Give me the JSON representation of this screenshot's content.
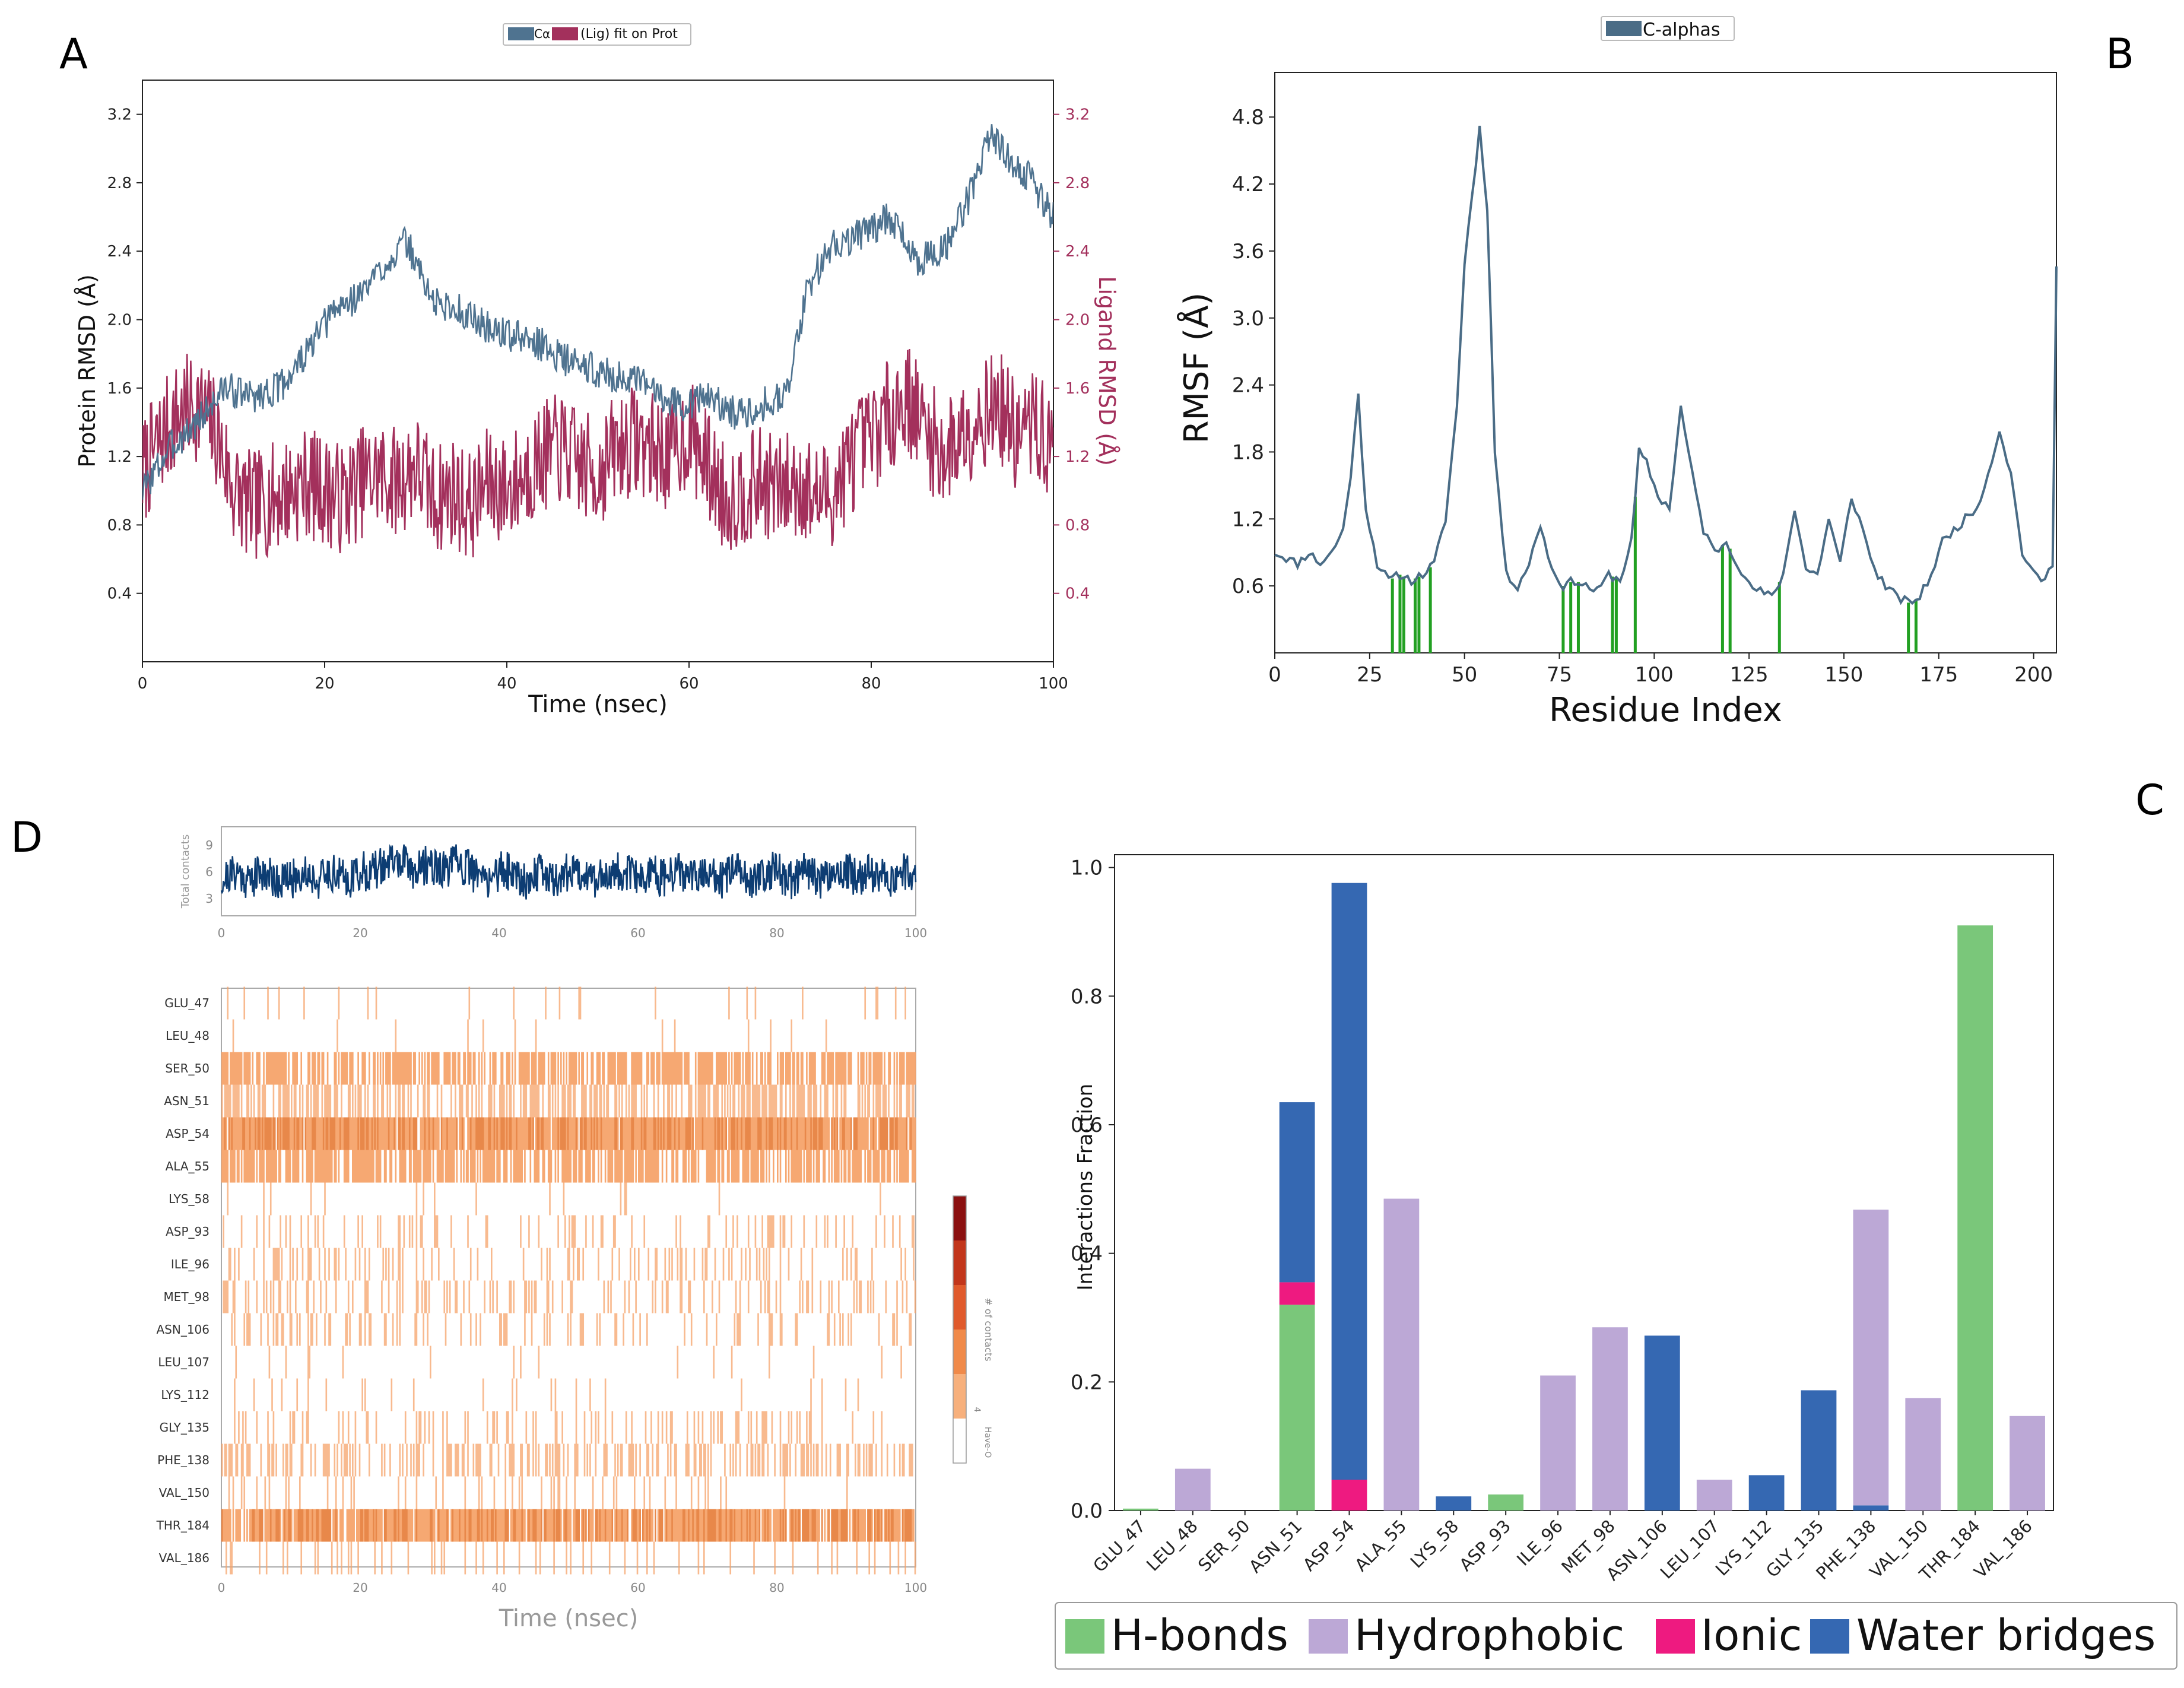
{
  "panels": {
    "a": "A",
    "b": "B",
    "c": "C",
    "d": "D"
  },
  "colors": {
    "protein": "#4f7390",
    "ligand": "#a3305c",
    "rmsf": "#4a6c86",
    "contact_marker": "#22a022",
    "contacts_line": "#0d3d73",
    "hbonds": "#7ac77a",
    "hydrophobic": "#bca8d6",
    "ionic": "#ee1a80",
    "water": "#3568b2",
    "heat": "#f5a36a",
    "heat_dark": "#e8884a"
  },
  "chart_data": [
    {
      "id": "A",
      "type": "line",
      "legend": {
        "labels": [
          "Cα",
          "(Lig) fit on Prot"
        ],
        "position": "top-center"
      },
      "xlabel": "Time (nsec)",
      "ylabel": "Protein RMSD (Å)",
      "y2label": "Ligand RMSD (Å)",
      "xlim": [
        0,
        100
      ],
      "ylim": [
        0,
        3.4
      ],
      "xticks": [
        "0",
        "20",
        "40",
        "60",
        "80",
        "100"
      ],
      "yticks": [
        "0.4",
        "0.8",
        "1.2",
        "1.6",
        "2.0",
        "2.4",
        "2.8",
        "3.2"
      ],
      "y2ticks": [
        "0.4",
        "0.8",
        "1.2",
        "1.6",
        "2.0",
        "2.4",
        "2.8",
        "3.2"
      ],
      "series": [
        {
          "key": "protein",
          "x": [
            0,
            3,
            6,
            9,
            12,
            15,
            18,
            21,
            24,
            27,
            29,
            32,
            35,
            38,
            41,
            44,
            47,
            50,
            53,
            56,
            59,
            62,
            65,
            68,
            71,
            73,
            76,
            79,
            82,
            85,
            88,
            91,
            93,
            95,
            97,
            100
          ],
          "values": [
            1.0,
            1.25,
            1.4,
            1.6,
            1.55,
            1.6,
            1.8,
            2.05,
            2.15,
            2.35,
            2.45,
            2.1,
            2.05,
            1.95,
            1.9,
            1.85,
            1.75,
            1.7,
            1.65,
            1.6,
            1.5,
            1.55,
            1.45,
            1.5,
            1.6,
            2.2,
            2.45,
            2.5,
            2.6,
            2.35,
            2.4,
            2.75,
            3.1,
            2.95,
            2.85,
            2.6
          ]
        },
        {
          "key": "ligand",
          "x": [
            0,
            2,
            4,
            6,
            8,
            10,
            12,
            14,
            16,
            18,
            20,
            22,
            24,
            26,
            28,
            30,
            32,
            34,
            36,
            38,
            40,
            42,
            44,
            46,
            48,
            50,
            52,
            54,
            56,
            58,
            60,
            62,
            64,
            66,
            68,
            70,
            72,
            74,
            76,
            78,
            80,
            82,
            84,
            86,
            88,
            90,
            92,
            94,
            96,
            98,
            100
          ],
          "values": [
            1.1,
            1.3,
            1.45,
            1.5,
            1.35,
            1.0,
            0.9,
            0.95,
            1.0,
            1.05,
            1.0,
            0.95,
            1.05,
            1.1,
            1.05,
            1.15,
            0.95,
            1.0,
            0.9,
            1.05,
            1.0,
            1.1,
            1.2,
            1.25,
            1.15,
            1.1,
            1.25,
            1.3,
            1.25,
            1.2,
            1.35,
            1.15,
            0.95,
            1.0,
            1.05,
            1.0,
            1.05,
            0.95,
            1.0,
            1.2,
            1.3,
            1.45,
            1.55,
            1.35,
            1.2,
            1.35,
            1.45,
            1.5,
            1.3,
            1.4,
            1.2
          ]
        }
      ]
    },
    {
      "id": "B",
      "type": "line",
      "legend": {
        "labels": [
          "C-alphas"
        ],
        "position": "top-center"
      },
      "xlabel": "Residue Index",
      "ylabel": "RMSF (Å)",
      "xlim": [
        0,
        206
      ],
      "ylim": [
        0,
        5.2
      ],
      "xticks": [
        "0",
        "25",
        "50",
        "75",
        "100",
        "125",
        "150",
        "175",
        "200"
      ],
      "yticks": [
        "0.6",
        "1.2",
        "1.8",
        "2.4",
        "3.0",
        "3.6",
        "4.2",
        "4.8"
      ],
      "series": [
        {
          "x": [
            0,
            3,
            6,
            9,
            12,
            15,
            18,
            20,
            22,
            24,
            27,
            30,
            33,
            36,
            39,
            42,
            45,
            48,
            50,
            52,
            54,
            56,
            58,
            61,
            64,
            67,
            70,
            73,
            76,
            79,
            82,
            85,
            88,
            91,
            94,
            96,
            98,
            101,
            104,
            107,
            110,
            113,
            116,
            119,
            122,
            125,
            128,
            131,
            134,
            137,
            140,
            143,
            146,
            149,
            152,
            155,
            158,
            161,
            164,
            167,
            170,
            173,
            176,
            179,
            182,
            185,
            188,
            191,
            194,
            197,
            200,
            203,
            205,
            206
          ],
          "values": [
            0.9,
            0.85,
            0.8,
            0.9,
            0.8,
            0.9,
            1.1,
            1.6,
            2.3,
            1.3,
            0.8,
            0.65,
            0.7,
            0.65,
            0.7,
            0.8,
            1.2,
            2.2,
            3.5,
            4.1,
            4.7,
            4.0,
            1.8,
            0.7,
            0.6,
            0.8,
            1.15,
            0.75,
            0.6,
            0.65,
            0.6,
            0.55,
            0.7,
            0.65,
            1.0,
            1.8,
            1.7,
            1.4,
            1.3,
            2.2,
            1.6,
            1.1,
            0.9,
            1.0,
            0.8,
            0.6,
            0.55,
            0.5,
            0.7,
            1.3,
            0.75,
            0.7,
            1.2,
            0.8,
            1.4,
            1.1,
            0.75,
            0.6,
            0.5,
            0.45,
            0.5,
            0.7,
            1.0,
            1.1,
            1.2,
            1.3,
            1.6,
            2.0,
            1.6,
            0.9,
            0.7,
            0.65,
            0.8,
            3.5
          ]
        }
      ],
      "contact_residues": [
        31,
        33,
        34,
        37,
        38,
        41,
        76,
        78,
        80,
        89,
        90,
        95,
        118,
        120,
        133,
        167,
        169
      ]
    },
    {
      "id": "C",
      "type": "bar",
      "ylabel": "Interactions Fraction",
      "ylim": [
        0,
        1.02
      ],
      "yticks": [
        "0.0",
        "0.2",
        "0.4",
        "0.6",
        "0.8",
        "1.0"
      ],
      "categories": [
        "GLU_47",
        "LEU_48",
        "SER_50",
        "ASN_51",
        "ASP_54",
        "ALA_55",
        "LYS_58",
        "ASP_93",
        "ILE_96",
        "MET_98",
        "ASN_106",
        "LEU_107",
        "LYS_112",
        "GLY_135",
        "PHE_138",
        "VAL_150",
        "THR_184",
        "VAL_186"
      ],
      "series": [
        {
          "name": "H-bonds",
          "key": "hbonds",
          "values": [
            0.003,
            0,
            0,
            0.32,
            0,
            0,
            0,
            0.025,
            0,
            0,
            0,
            0,
            0,
            0,
            0,
            0,
            0.91,
            0
          ]
        },
        {
          "name": "Hydrophobic",
          "key": "hydrophobic",
          "values": [
            0,
            0.065,
            0,
            0,
            0,
            0.485,
            0,
            0,
            0.21,
            0.285,
            0,
            0.048,
            0,
            0,
            0.46,
            0.175,
            0,
            0.147
          ]
        },
        {
          "name": "Ionic",
          "key": "ionic",
          "values": [
            0,
            0,
            0,
            0.035,
            0.048,
            0,
            0,
            0,
            0,
            0,
            0,
            0,
            0,
            0,
            0,
            0,
            0,
            0
          ]
        },
        {
          "name": "Water bridges",
          "key": "water",
          "values": [
            0,
            0,
            0,
            0.28,
            0.928,
            0,
            0.022,
            0,
            0,
            0,
            0.272,
            0,
            0.055,
            0.187,
            0.008,
            0,
            0,
            0
          ]
        }
      ],
      "legend": {
        "position": "bottom"
      }
    },
    {
      "id": "D",
      "type": "heatmap",
      "top_ylabel": "Total contacts",
      "top_yticks": [
        "3",
        "6",
        "9"
      ],
      "top_ylim": [
        1,
        11
      ],
      "xticks": [
        "0",
        "20",
        "40",
        "60",
        "80",
        "100"
      ],
      "xlabel": "Time (nsec)",
      "xlim": [
        0,
        100
      ],
      "total_contacts": {
        "x": [
          0,
          2,
          4,
          6,
          8,
          10,
          12,
          14,
          16,
          18,
          20,
          22,
          24,
          26,
          28,
          30,
          32,
          34,
          36,
          38,
          40,
          42,
          44,
          46,
          48,
          50,
          52,
          54,
          56,
          58,
          60,
          62,
          64,
          66,
          68,
          70,
          72,
          74,
          76,
          78,
          80,
          82,
          84,
          86,
          88,
          90,
          92,
          94,
          96,
          98,
          100
        ],
        "values": [
          5,
          6,
          5,
          6,
          5,
          5,
          6,
          5,
          6,
          5,
          6,
          6,
          7,
          7,
          6,
          7,
          6,
          7,
          6,
          5,
          6,
          6,
          5,
          6,
          5,
          6,
          6,
          5,
          6,
          6,
          5,
          6,
          5,
          6,
          5,
          6,
          5,
          6,
          5,
          6,
          6,
          5,
          6,
          5,
          6,
          6,
          5,
          6,
          5,
          6,
          5
        ]
      },
      "residues": [
        "GLU_47",
        "LEU_48",
        "SER_50",
        "ASN_51",
        "ASP_54",
        "ALA_55",
        "LYS_58",
        "ASP_93",
        "ILE_96",
        "MET_98",
        "ASN_106",
        "LEU_107",
        "LYS_112",
        "GLY_135",
        "PHE_138",
        "VAL_150",
        "THR_184",
        "VAL_186"
      ],
      "occupancy": [
        0.05,
        0.03,
        0.7,
        0.55,
        0.95,
        0.7,
        0.04,
        0.15,
        0.18,
        0.25,
        0.2,
        0.04,
        0.05,
        0.2,
        0.4,
        0.12,
        0.92,
        0.1
      ],
      "colorbar_label": "# of contacts",
      "colorbar_label2": "Have-O",
      "colorbar_tick": "4"
    }
  ]
}
